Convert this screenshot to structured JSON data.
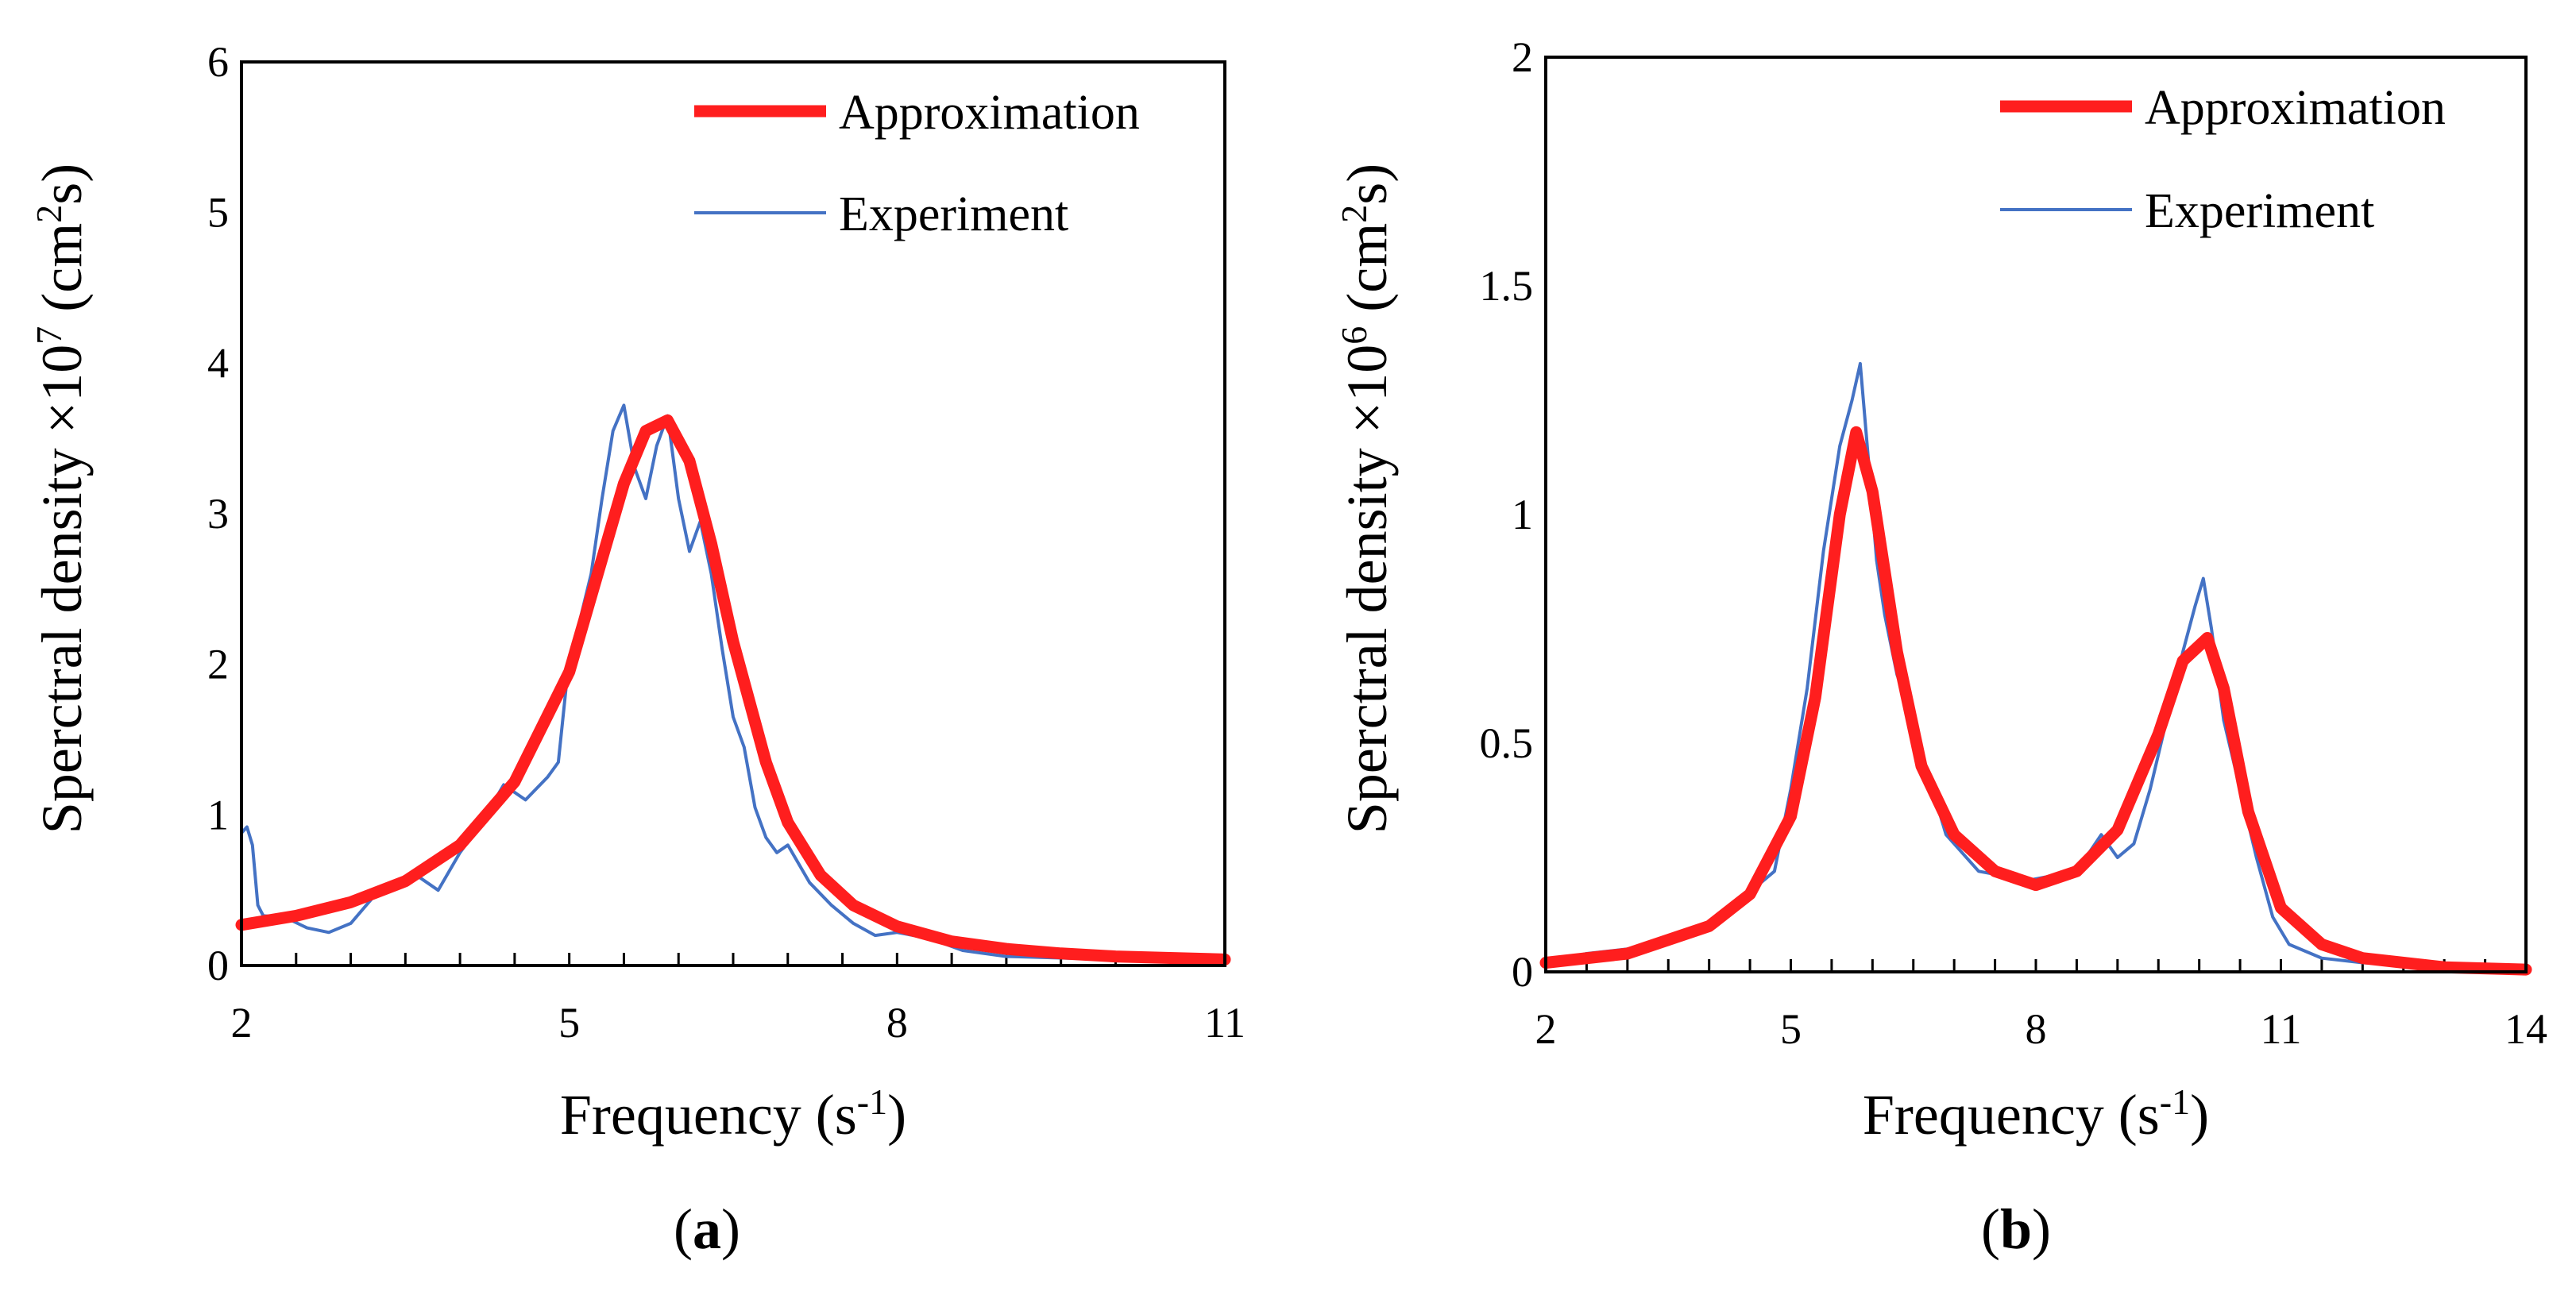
{
  "colors": {
    "approximation": "#ff1e1e",
    "experiment": "#4472c4",
    "axis": "#000000"
  },
  "chart_data": [
    {
      "id": "a",
      "type": "line",
      "caption": {
        "open": "(",
        "letter": "a",
        "close": ")"
      },
      "xlabel": {
        "main": "Frequency (s",
        "sup": "-1",
        "tail": ")"
      },
      "ylabel": {
        "main": "Sperctral density ×10",
        "sup": "7",
        "unit_open": " (cm",
        "unit_sup": "2",
        "unit_tail": "s)"
      },
      "xlim": [
        2,
        11
      ],
      "ylim": [
        0,
        6
      ],
      "xticks": [
        2,
        5,
        8,
        11
      ],
      "xtick_labels": [
        "2",
        "5",
        "8",
        "11"
      ],
      "yticks": [
        0,
        1,
        2,
        3,
        4,
        5,
        6
      ],
      "ytick_labels": [
        "0",
        "1",
        "2",
        "3",
        "4",
        "5",
        "6"
      ],
      "legend": [
        "Approximation",
        "Experiment"
      ],
      "series": [
        {
          "name": "Approximation",
          "x": [
            2.0,
            2.5,
            3.0,
            3.5,
            4.0,
            4.5,
            5.0,
            5.3,
            5.5,
            5.7,
            5.9,
            6.1,
            6.3,
            6.5,
            6.8,
            7.0,
            7.3,
            7.6,
            8.0,
            8.5,
            9.0,
            9.5,
            10.0,
            10.5,
            11.0
          ],
          "y": [
            0.27,
            0.33,
            0.42,
            0.56,
            0.8,
            1.22,
            1.95,
            2.7,
            3.2,
            3.55,
            3.62,
            3.35,
            2.8,
            2.15,
            1.35,
            0.95,
            0.6,
            0.4,
            0.26,
            0.16,
            0.11,
            0.08,
            0.06,
            0.05,
            0.04
          ]
        },
        {
          "name": "Experiment",
          "x": [
            2.0,
            2.05,
            2.1,
            2.15,
            2.2,
            2.4,
            2.6,
            2.8,
            3.0,
            3.2,
            3.4,
            3.6,
            3.8,
            4.0,
            4.2,
            4.4,
            4.6,
            4.8,
            4.9,
            5.0,
            5.1,
            5.2,
            5.3,
            5.4,
            5.5,
            5.6,
            5.7,
            5.8,
            5.9,
            6.0,
            6.1,
            6.2,
            6.3,
            6.4,
            6.5,
            6.6,
            6.7,
            6.8,
            6.9,
            7.0,
            7.2,
            7.4,
            7.6,
            7.8,
            8.0,
            8.3,
            8.6,
            9.0,
            9.5,
            10.0,
            10.5,
            11.0
          ],
          "y": [
            0.88,
            0.92,
            0.8,
            0.4,
            0.33,
            0.32,
            0.25,
            0.22,
            0.28,
            0.45,
            0.55,
            0.6,
            0.5,
            0.75,
            0.95,
            1.2,
            1.1,
            1.25,
            1.35,
            2.05,
            2.3,
            2.6,
            3.1,
            3.55,
            3.72,
            3.3,
            3.1,
            3.45,
            3.65,
            3.1,
            2.75,
            2.95,
            2.6,
            2.1,
            1.65,
            1.45,
            1.05,
            0.85,
            0.75,
            0.8,
            0.55,
            0.4,
            0.28,
            0.2,
            0.22,
            0.18,
            0.1,
            0.06,
            0.05,
            0.04,
            0.03,
            0.03
          ]
        }
      ]
    },
    {
      "id": "b",
      "type": "line",
      "caption": {
        "open": "(",
        "letter": "b",
        "close": ")"
      },
      "xlabel": {
        "main": "Frequency (s",
        "sup": "-1",
        "tail": ")"
      },
      "ylabel": {
        "main": "Sperctral density ×10",
        "sup": "6",
        "unit_open": " (cm",
        "unit_sup": "2",
        "unit_tail": "s)"
      },
      "xlim": [
        2,
        14
      ],
      "ylim": [
        0,
        2
      ],
      "xticks": [
        2,
        5,
        8,
        11,
        14
      ],
      "xtick_labels": [
        "2",
        "5",
        "8",
        "11",
        "14"
      ],
      "yticks": [
        0,
        0.5,
        1,
        1.5,
        2
      ],
      "ytick_labels": [
        "0",
        "0.5",
        "1",
        "1.5",
        "2"
      ],
      "legend": [
        "Approximation",
        "Experiment"
      ],
      "series": [
        {
          "name": "Approximation",
          "x": [
            2.0,
            3.0,
            4.0,
            4.5,
            5.0,
            5.3,
            5.6,
            5.8,
            6.0,
            6.3,
            6.6,
            7.0,
            7.5,
            8.0,
            8.5,
            9.0,
            9.5,
            9.8,
            10.1,
            10.3,
            10.6,
            11.0,
            11.5,
            12.0,
            13.0,
            14.0
          ],
          "y": [
            0.02,
            0.04,
            0.1,
            0.17,
            0.34,
            0.6,
            1.0,
            1.18,
            1.05,
            0.7,
            0.45,
            0.3,
            0.22,
            0.19,
            0.22,
            0.31,
            0.52,
            0.68,
            0.73,
            0.62,
            0.35,
            0.14,
            0.06,
            0.03,
            0.01,
            0.005
          ]
        },
        {
          "name": "Experiment",
          "x": [
            2.0,
            2.5,
            3.0,
            3.5,
            4.0,
            4.3,
            4.6,
            4.8,
            5.0,
            5.2,
            5.4,
            5.6,
            5.75,
            5.85,
            5.95,
            6.05,
            6.15,
            6.3,
            6.5,
            6.7,
            6.9,
            7.1,
            7.3,
            7.6,
            7.9,
            8.2,
            8.5,
            8.8,
            9.0,
            9.2,
            9.4,
            9.6,
            9.8,
            9.95,
            10.05,
            10.15,
            10.3,
            10.5,
            10.7,
            10.9,
            11.1,
            11.5,
            12.0,
            13.0,
            14.0
          ],
          "y": [
            0.02,
            0.04,
            0.05,
            0.06,
            0.1,
            0.14,
            0.19,
            0.22,
            0.4,
            0.62,
            0.92,
            1.15,
            1.25,
            1.33,
            1.12,
            0.9,
            0.78,
            0.65,
            0.55,
            0.42,
            0.3,
            0.26,
            0.22,
            0.21,
            0.2,
            0.21,
            0.22,
            0.3,
            0.25,
            0.28,
            0.4,
            0.55,
            0.7,
            0.8,
            0.86,
            0.75,
            0.55,
            0.4,
            0.25,
            0.12,
            0.06,
            0.03,
            0.02,
            0.01,
            0.005
          ]
        }
      ]
    }
  ]
}
